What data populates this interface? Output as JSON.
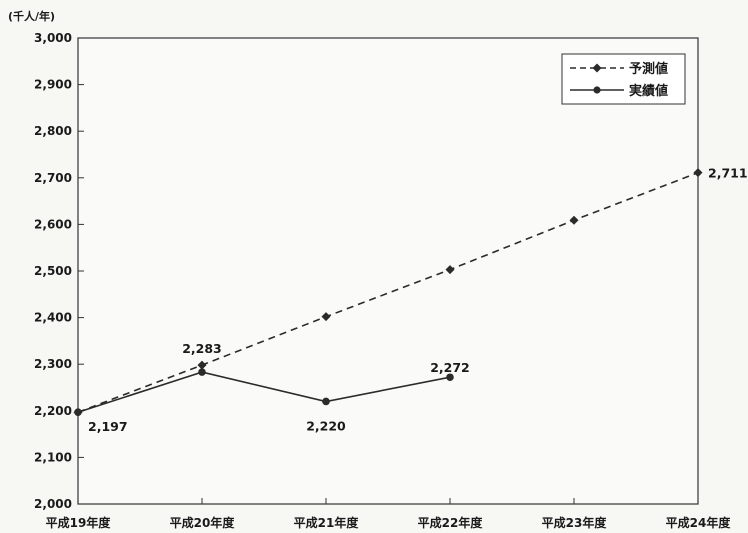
{
  "chart_data": {
    "type": "line",
    "unit_label": "(千人/年)",
    "categories": [
      "平成19年度",
      "平成20年度",
      "平成21年度",
      "平成22年度",
      "平成23年度",
      "平成24年度"
    ],
    "ylim": [
      2000,
      3000
    ],
    "yticks": [
      "2,000",
      "2,100",
      "2,200",
      "2,300",
      "2,400",
      "2,500",
      "2,600",
      "2,700",
      "2,800",
      "2,900",
      "3,000"
    ],
    "grid": false,
    "legend_position": "top-right",
    "series": [
      {
        "name": "予測値",
        "style": "dashed",
        "marker": "diamond",
        "values": [
          2197,
          2298,
          2402,
          2503,
          2609,
          2711
        ],
        "labels": [
          null,
          null,
          null,
          null,
          null,
          "2,711"
        ]
      },
      {
        "name": "実績値",
        "style": "solid",
        "marker": "circle",
        "values": [
          2197,
          2283,
          2220,
          2272,
          null,
          null
        ],
        "labels": [
          "2,197",
          "2,283",
          "2,220",
          "2,272",
          null,
          null
        ]
      }
    ],
    "colors": {
      "line": "#2b2b2b",
      "frame": "#333333"
    }
  }
}
